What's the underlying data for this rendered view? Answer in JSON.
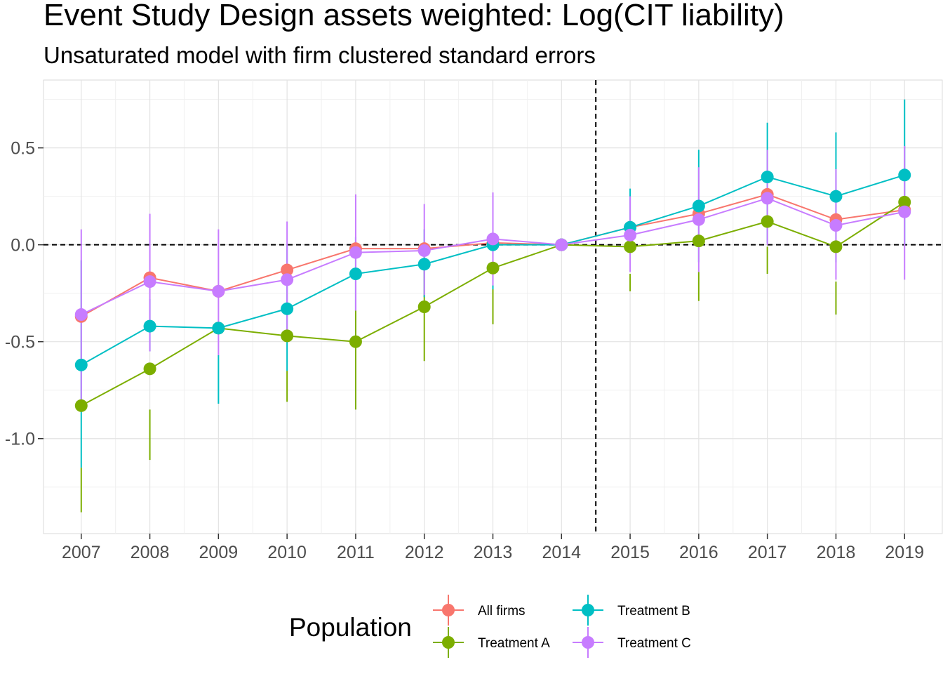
{
  "chart_data": {
    "type": "line",
    "title": "Event Study Design assets weighted: Log(CIT liability)",
    "subtitle": "Unsaturated model with firm clustered standard errors",
    "xlabel": "",
    "ylabel": "",
    "x": [
      2007,
      2008,
      2009,
      2010,
      2011,
      2012,
      2013,
      2014,
      2015,
      2016,
      2017,
      2018,
      2019
    ],
    "x_tick_labels": [
      "2007",
      "2008",
      "2009",
      "2010",
      "2011",
      "2012",
      "2013",
      "2014",
      "2015",
      "2016",
      "2017",
      "2018",
      "2019"
    ],
    "xlim": [
      2006.45,
      2019.55
    ],
    "ylim": [
      -1.49,
      0.85
    ],
    "y_ticks": [
      0.5,
      0.0,
      -0.5,
      -1.0
    ],
    "y_tick_labels": [
      "0.5",
      "0.0",
      "-0.5",
      "-1.0"
    ],
    "grid": true,
    "reference_lines": {
      "vertical_x": 2014.5,
      "horizontal_y": 0.0
    },
    "legend": {
      "title": "Population",
      "placement": "bottom",
      "entries": [
        "All firms",
        "Treatment A",
        "Treatment B",
        "Treatment C"
      ]
    },
    "series": [
      {
        "name": "All firms",
        "color": "#F8766D",
        "values": [
          -0.37,
          -0.17,
          -0.24,
          -0.13,
          -0.02,
          -0.02,
          0.01,
          0.0,
          0.09,
          0.16,
          0.26,
          0.13,
          0.18
        ],
        "ci_low": [
          null,
          null,
          null,
          null,
          null,
          null,
          null,
          null,
          null,
          null,
          null,
          null,
          null
        ],
        "ci_high": [
          null,
          null,
          null,
          null,
          null,
          null,
          null,
          null,
          null,
          null,
          null,
          null,
          null
        ]
      },
      {
        "name": "Treatment A",
        "color": "#7CAE00",
        "values": [
          -0.83,
          -0.64,
          -0.43,
          -0.47,
          -0.5,
          -0.32,
          -0.12,
          0.0,
          -0.01,
          0.02,
          0.12,
          -0.01,
          0.22
        ],
        "ci_low": [
          -1.38,
          -1.11,
          null,
          -0.81,
          -0.85,
          -0.6,
          -0.41,
          null,
          -0.24,
          -0.29,
          -0.15,
          -0.36,
          null
        ],
        "ci_high": [
          -1.15,
          -0.85,
          null,
          -0.65,
          -0.34,
          -0.05,
          -0.22,
          null,
          -0.15,
          -0.14,
          -0.01,
          -0.19,
          null
        ]
      },
      {
        "name": "Treatment B",
        "color": "#00BFC4",
        "values": [
          -0.62,
          -0.42,
          -0.43,
          -0.33,
          -0.15,
          -0.1,
          0.0,
          0.0,
          0.09,
          0.2,
          0.35,
          0.25,
          0.36
        ],
        "ci_low": [
          -1.15,
          -0.55,
          -0.82,
          -0.65,
          -0.34,
          -0.27,
          -0.23,
          null,
          -0.05,
          -0.09,
          0.01,
          -0.09,
          0.0
        ],
        "ci_high": [
          -0.08,
          -0.28,
          -0.57,
          0.0,
          0.04,
          0.08,
          0.22,
          null,
          0.29,
          0.49,
          0.63,
          0.58,
          0.75
        ]
      },
      {
        "name": "Treatment C",
        "color": "#C77CFF",
        "values": [
          -0.36,
          -0.19,
          -0.24,
          -0.18,
          -0.04,
          -0.03,
          0.03,
          0.0,
          0.05,
          0.13,
          0.24,
          0.1,
          0.17
        ],
        "ci_low": [
          -0.82,
          -0.55,
          -0.57,
          -0.47,
          -0.34,
          -0.26,
          -0.21,
          null,
          -0.14,
          -0.14,
          0.0,
          -0.18,
          -0.18
        ],
        "ci_high": [
          0.08,
          0.16,
          0.08,
          0.12,
          0.26,
          0.21,
          0.27,
          null,
          0.25,
          0.4,
          0.49,
          0.39,
          0.51
        ]
      }
    ]
  }
}
